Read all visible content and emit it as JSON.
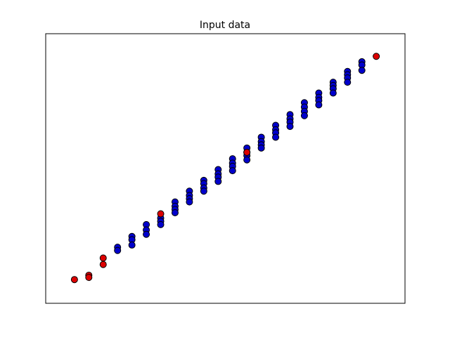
{
  "chart_data": {
    "type": "scatter",
    "title": "Input data",
    "xlim": [
      -2,
      23
    ],
    "ylim": [
      -2,
      23
    ],
    "series": [
      {
        "color": "#0000cc",
        "x": [
          3,
          3,
          4,
          4,
          4,
          5,
          5,
          5,
          6,
          6,
          6,
          7,
          7,
          7,
          7,
          8,
          8,
          8,
          8,
          9,
          9,
          9,
          9,
          10,
          10,
          10,
          10,
          11,
          11,
          11,
          11,
          12,
          12,
          12,
          12,
          13,
          13,
          13,
          13,
          14,
          14,
          14,
          14,
          15,
          15,
          15,
          15,
          16,
          16,
          16,
          16,
          17,
          17,
          17,
          17,
          18,
          18,
          18,
          18,
          19,
          19,
          19,
          19,
          20,
          20,
          20
        ],
        "y": [
          3.2,
          2.9,
          4.2,
          3.9,
          3.4,
          5.3,
          4.8,
          4.4,
          5.9,
          5.6,
          5.3,
          7.4,
          7.0,
          6.7,
          6.4,
          8.4,
          8.0,
          7.7,
          7.4,
          9.4,
          9.1,
          8.7,
          8.4,
          10.4,
          10.0,
          9.7,
          9.3,
          11.4,
          11.0,
          10.7,
          10.3,
          12.4,
          12.0,
          11.7,
          11.3,
          13.4,
          13.0,
          12.7,
          12.4,
          14.5,
          14.1,
          13.8,
          13.4,
          15.5,
          15.1,
          14.8,
          14.4,
          16.6,
          16.2,
          15.8,
          15.4,
          17.5,
          17.1,
          16.8,
          16.4,
          18.5,
          18.2,
          17.9,
          17.5,
          19.5,
          19.2,
          18.9,
          18.5,
          20.4,
          20.1,
          19.6
        ]
      },
      {
        "color": "#dd0000",
        "x": [
          0,
          1,
          1,
          2,
          2,
          6,
          12,
          21
        ],
        "y": [
          0.2,
          0.6,
          0.4,
          2.2,
          1.6,
          6.3,
          12.0,
          20.9
        ]
      }
    ]
  }
}
